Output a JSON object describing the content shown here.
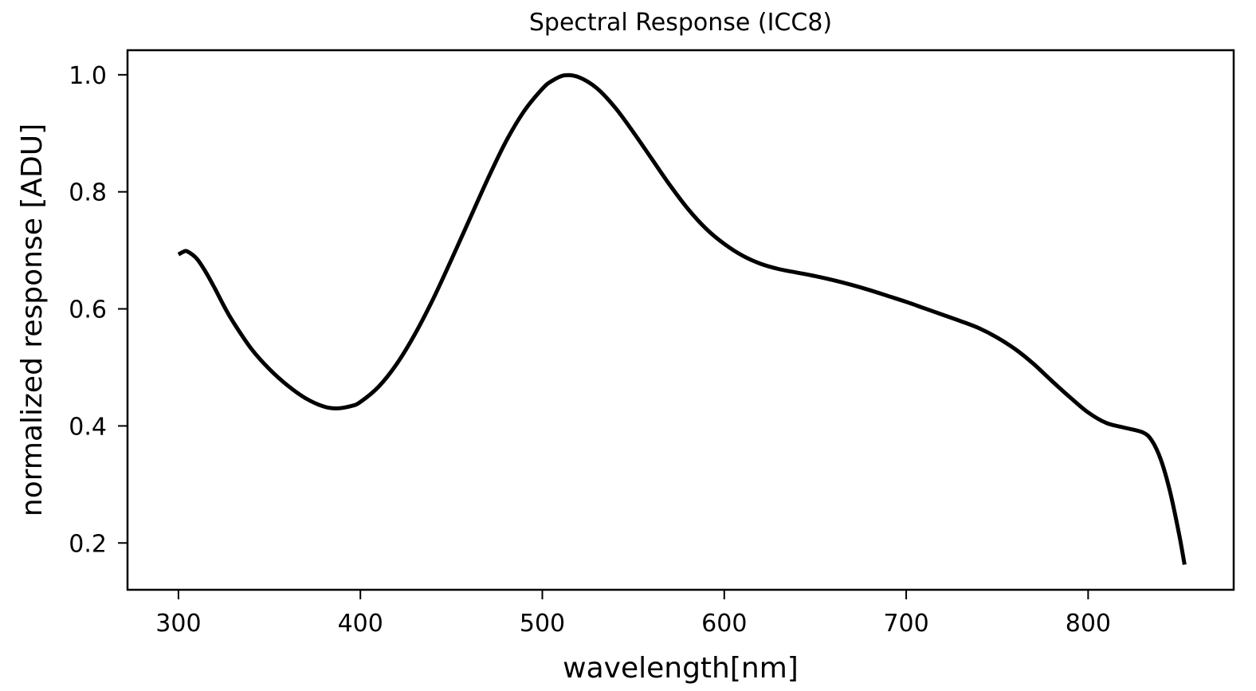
{
  "chart_data": {
    "type": "line",
    "title": "Spectral Response (ICC8)",
    "xlabel": "wavelength[nm]",
    "ylabel": "normalized response [ADU]",
    "xlim": [
      272,
      880
    ],
    "ylim": [
      0.12,
      1.042
    ],
    "xticks": [
      300,
      400,
      500,
      600,
      700,
      800
    ],
    "yticks": [
      0.2,
      0.4,
      0.6,
      0.8,
      1.0
    ],
    "ytick_labels": [
      "0.2",
      "0.4",
      "0.6",
      "0.8",
      "1.0"
    ],
    "grid": false,
    "line_color": "#000000",
    "series": [
      {
        "x": [
          300,
          303,
          305,
          310,
          315,
          320,
          325,
          330,
          340,
          350,
          360,
          370,
          380,
          387,
          395,
          400,
          410,
          420,
          430,
          440,
          450,
          460,
          470,
          480,
          490,
          500,
          505,
          512,
          520,
          530,
          540,
          550,
          560,
          570,
          580,
          590,
          600,
          610,
          620,
          630,
          640,
          650,
          660,
          670,
          680,
          690,
          700,
          710,
          720,
          730,
          740,
          750,
          760,
          770,
          780,
          790,
          800,
          810,
          820,
          830,
          835,
          840,
          845,
          850,
          853
        ],
        "y": [
          0.693,
          0.698,
          0.698,
          0.686,
          0.663,
          0.635,
          0.605,
          0.578,
          0.532,
          0.497,
          0.469,
          0.447,
          0.433,
          0.43,
          0.434,
          0.441,
          0.467,
          0.506,
          0.557,
          0.617,
          0.684,
          0.753,
          0.822,
          0.886,
          0.938,
          0.976,
          0.989,
          0.999,
          0.996,
          0.977,
          0.944,
          0.902,
          0.857,
          0.812,
          0.771,
          0.737,
          0.711,
          0.691,
          0.677,
          0.668,
          0.662,
          0.656,
          0.649,
          0.641,
          0.632,
          0.622,
          0.612,
          0.601,
          0.59,
          0.579,
          0.567,
          0.551,
          0.531,
          0.506,
          0.477,
          0.449,
          0.423,
          0.405,
          0.397,
          0.389,
          0.375,
          0.342,
          0.288,
          0.215,
          0.163
        ]
      }
    ]
  }
}
